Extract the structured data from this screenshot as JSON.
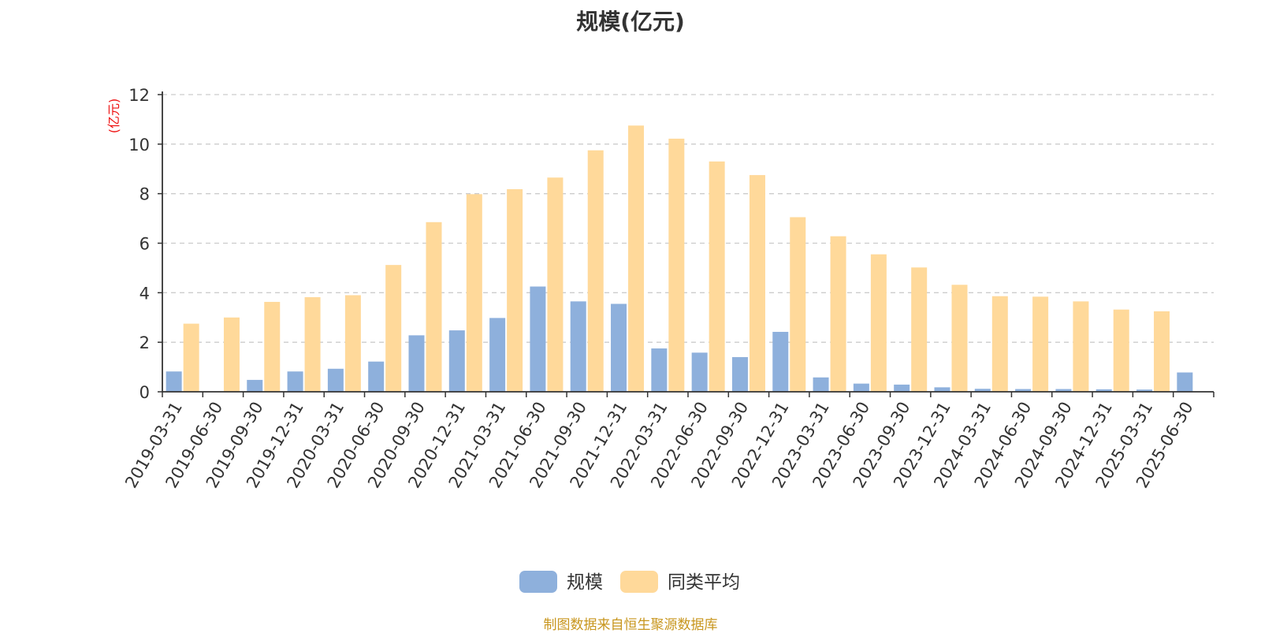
{
  "chart_data": {
    "type": "bar",
    "title": "规模(亿元)",
    "ylabel": "(亿元)",
    "ylim": [
      0,
      12
    ],
    "yticks": [
      0,
      2,
      4,
      6,
      8,
      10,
      12
    ],
    "grid": true,
    "legend_position": "bottom-center",
    "categories": [
      "2019-03-31",
      "2019-06-30",
      "2019-09-30",
      "2019-12-31",
      "2020-03-31",
      "2020-06-30",
      "2020-09-30",
      "2020-12-31",
      "2021-03-31",
      "2021-06-30",
      "2021-09-30",
      "2021-12-31",
      "2022-03-31",
      "2022-06-30",
      "2022-09-30",
      "2022-12-31",
      "2023-03-31",
      "2023-06-30",
      "2023-09-30",
      "2023-12-31",
      "2024-03-31",
      "2024-06-30",
      "2024-09-30",
      "2024-12-31",
      "2025-03-31",
      "2025-06-30"
    ],
    "series": [
      {
        "name": "规模",
        "color": "#8eb0dc",
        "values": [
          0.82,
          0,
          0.48,
          0.82,
          0.93,
          1.22,
          2.28,
          2.48,
          2.98,
          4.25,
          3.65,
          3.55,
          1.75,
          1.58,
          1.4,
          2.42,
          0.58,
          0.33,
          0.29,
          0.18,
          0.12,
          0.11,
          0.11,
          0.1,
          0.09,
          0.78
        ]
      },
      {
        "name": "同类平均",
        "color": "#ffd99a",
        "values": [
          2.75,
          3.0,
          3.63,
          3.82,
          3.9,
          5.12,
          6.85,
          7.98,
          8.18,
          8.65,
          9.75,
          10.75,
          10.22,
          9.3,
          8.75,
          7.05,
          6.28,
          5.55,
          5.02,
          4.32,
          3.86,
          3.84,
          3.65,
          3.32,
          3.25,
          null
        ]
      }
    ]
  },
  "source_note": "制图数据来自恒生聚源数据库"
}
